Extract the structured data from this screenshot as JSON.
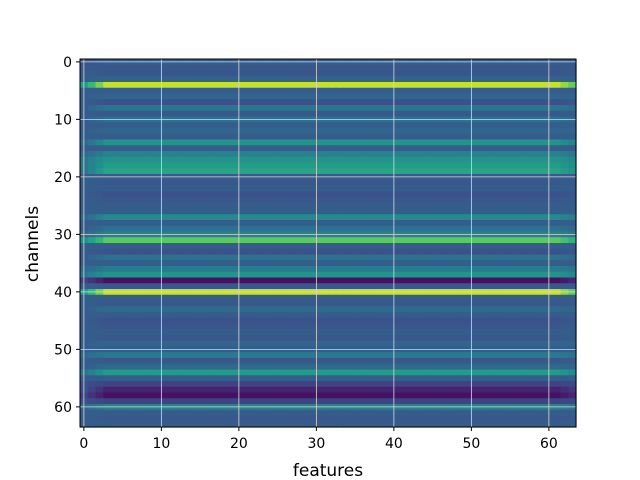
{
  "chart_data": {
    "type": "heatmap",
    "title": "",
    "xlabel": "features",
    "ylabel": "channels",
    "n_rows": 64,
    "n_cols": 64,
    "xlim": [
      -0.5,
      63.5
    ],
    "ylim": [
      63.5,
      -0.5
    ],
    "x_ticks": [
      "0",
      "10",
      "20",
      "30",
      "40",
      "50",
      "60"
    ],
    "y_ticks": [
      "0",
      "10",
      "20",
      "30",
      "40",
      "50",
      "60"
    ],
    "x_tick_values": [
      0,
      10,
      20,
      30,
      40,
      50,
      60
    ],
    "y_tick_values": [
      0,
      10,
      20,
      30,
      40,
      50,
      60
    ],
    "grid": true,
    "colormap": "viridis",
    "row_values": [
      0.3,
      0.28,
      0.27,
      0.32,
      0.92,
      0.3,
      0.33,
      0.25,
      0.4,
      0.28,
      0.38,
      0.3,
      0.33,
      0.3,
      0.52,
      0.3,
      0.45,
      0.52,
      0.55,
      0.6,
      0.3,
      0.28,
      0.3,
      0.25,
      0.28,
      0.3,
      0.3,
      0.48,
      0.3,
      0.38,
      0.45,
      0.75,
      0.3,
      0.25,
      0.38,
      0.3,
      0.42,
      0.52,
      0.05,
      0.28,
      0.92,
      0.3,
      0.28,
      0.35,
      0.3,
      0.25,
      0.28,
      0.3,
      0.28,
      0.33,
      0.3,
      0.42,
      0.28,
      0.35,
      0.55,
      0.3,
      0.2,
      0.1,
      0.05,
      0.2,
      0.45,
      0.3,
      0.28,
      0.3
    ],
    "edge_values": [
      0.25,
      0.28,
      0.3,
      0.3,
      0.55,
      0.3,
      0.3,
      0.3,
      0.3,
      0.3,
      0.3,
      0.3,
      0.3,
      0.3,
      0.35,
      0.3,
      0.35,
      0.4,
      0.4,
      0.4,
      0.3,
      0.3,
      0.3,
      0.3,
      0.3,
      0.3,
      0.3,
      0.35,
      0.3,
      0.3,
      0.35,
      0.5,
      0.3,
      0.3,
      0.3,
      0.3,
      0.35,
      0.4,
      0.2,
      0.3,
      0.55,
      0.3,
      0.3,
      0.3,
      0.3,
      0.3,
      0.3,
      0.3,
      0.3,
      0.3,
      0.3,
      0.35,
      0.3,
      0.3,
      0.4,
      0.3,
      0.25,
      0.25,
      0.2,
      0.25,
      0.35,
      0.3,
      0.3,
      0.3
    ],
    "colors": {
      "background": "#ffffff",
      "grid": "#d8d8d8",
      "axis": "#000000"
    }
  }
}
